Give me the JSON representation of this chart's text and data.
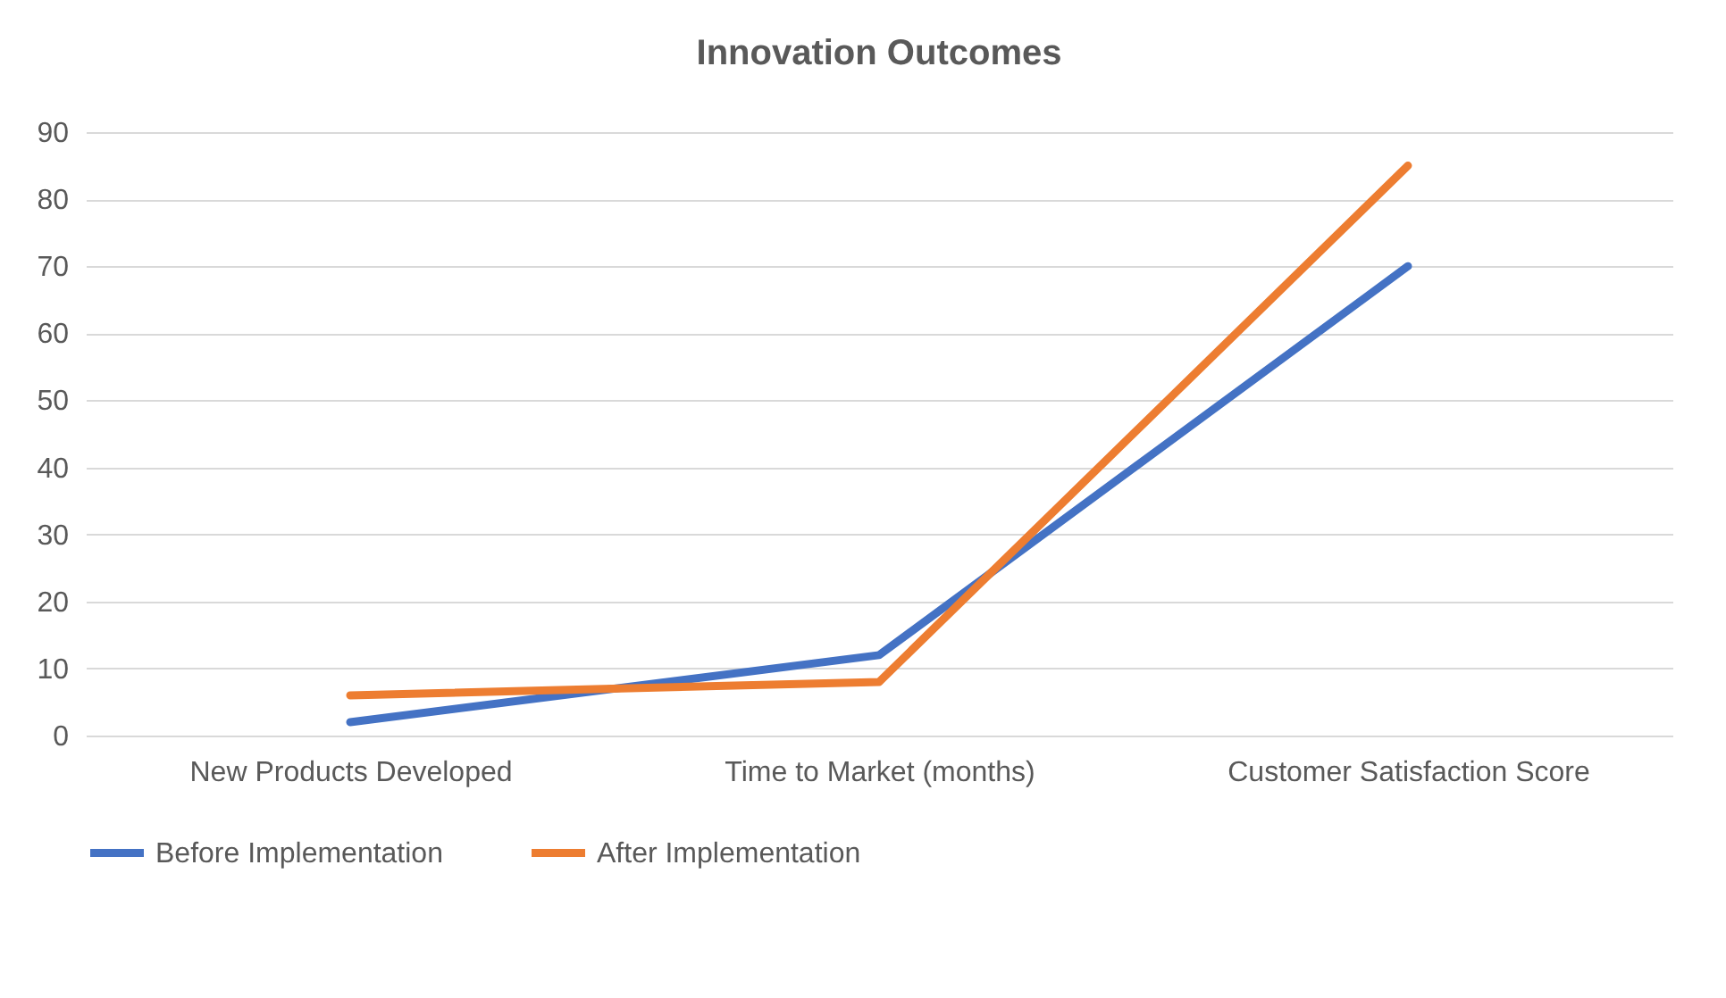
{
  "chart_data": {
    "type": "line",
    "title": "Innovation Outcomes",
    "categories": [
      "New Products Developed",
      "Time to Market (months)",
      "Customer Satisfaction Score"
    ],
    "series": [
      {
        "name": "Before Implementation",
        "color": "#4472c4",
        "values": [
          2,
          12,
          70
        ]
      },
      {
        "name": "After Implementation",
        "color": "#ed7d31",
        "values": [
          6,
          8,
          85
        ]
      }
    ],
    "ylim": [
      0,
      90
    ],
    "yticks": [
      0,
      10,
      20,
      30,
      40,
      50,
      60,
      70,
      80,
      90
    ],
    "grid": "y",
    "legend": "bottom",
    "marker": "none",
    "line_style": "solid"
  }
}
